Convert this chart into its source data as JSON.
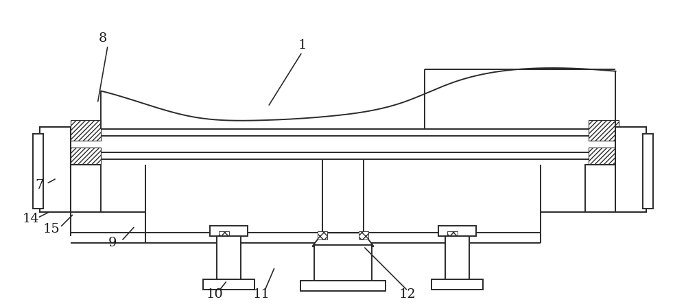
{
  "bg_color": "#ffffff",
  "lc": "#2a2a2a",
  "lw": 1.4,
  "lw_thin": 1.0,
  "fig_width": 10.0,
  "fig_height": 4.43,
  "label_fs": 14,
  "label_color": "#1a1a1a"
}
